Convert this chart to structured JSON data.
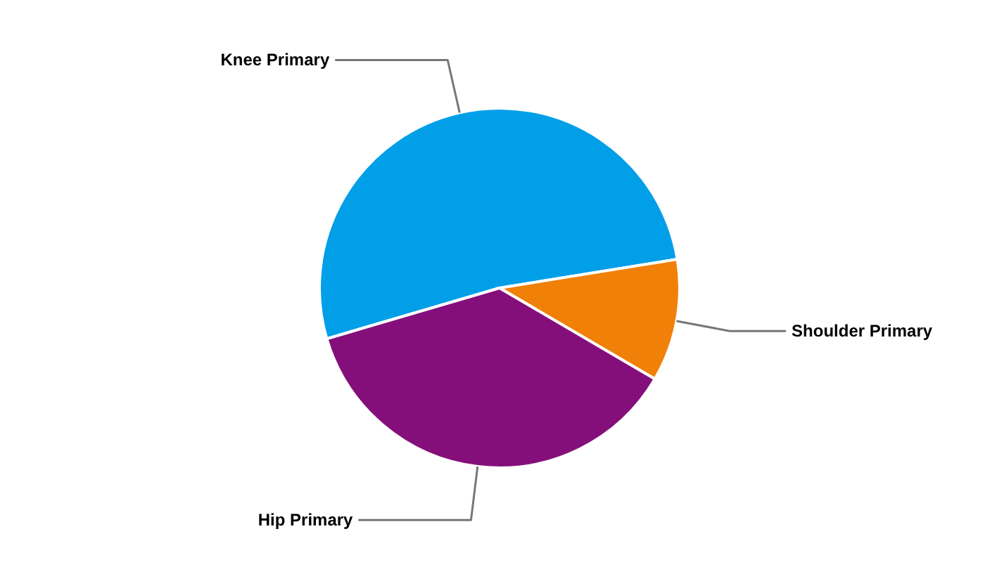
{
  "chart_data": {
    "type": "pie",
    "categories": [
      "Knee Primary",
      "Shoulder Primary",
      "Hip Primary"
    ],
    "values": [
      52,
      11,
      37
    ],
    "colors": [
      "#009fe8",
      "#f08008",
      "#850f7a"
    ]
  }
}
